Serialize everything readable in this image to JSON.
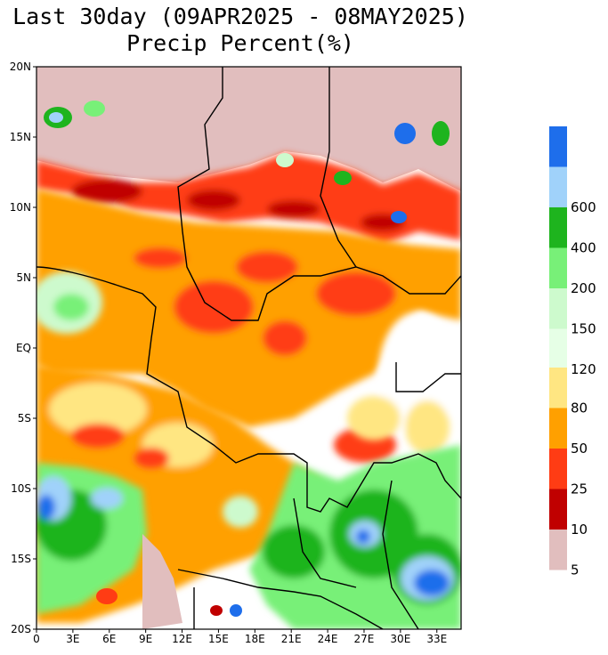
{
  "title": {
    "line1": "Last 30day (09APR2025 - 08MAY2025)",
    "line2": "Precip Percent(%)"
  },
  "axes": {
    "lat_labels": [
      "20N",
      "15N",
      "10N",
      "5N",
      "EQ",
      "5S",
      "10S",
      "15S",
      "20S"
    ],
    "lon_labels": [
      "0",
      "3E",
      "6E",
      "9E",
      "12E",
      "15E",
      "18E",
      "21E",
      "24E",
      "27E",
      "30E",
      "33E"
    ],
    "lat_range": [
      -20,
      20
    ],
    "lon_range": [
      0,
      35
    ]
  },
  "legend": {
    "upper": [
      {
        "color": "#e6ffe6",
        "label": "120"
      },
      {
        "color": "#cdfacd",
        "label": "150"
      },
      {
        "color": "#78f078",
        "label": "200"
      },
      {
        "color": "#1eb41e",
        "label": "400"
      },
      {
        "color": "#a0d2fa",
        "label": "600"
      },
      {
        "color": "#1e6eeb",
        "label": ""
      }
    ],
    "lower": [
      {
        "color": "#e1bebe",
        "label": "5"
      },
      {
        "color": "#c00000",
        "label": "10"
      },
      {
        "color": "#ff3c14",
        "label": "25"
      },
      {
        "color": "#ffa000",
        "label": "50"
      },
      {
        "color": "#ffe682",
        "label": "80"
      }
    ]
  },
  "colors": {
    "ocean_land_base": "#ffffff",
    "dry_north": "#e1bebe",
    "deficit_dark": "#c00000",
    "deficit_red": "#ff3c14",
    "deficit_orange": "#ffa000",
    "deficit_yellow": "#ffe682",
    "surplus_light": "#cdfacd",
    "surplus_mid": "#78f078",
    "surplus_green": "#1eb41e",
    "surplus_lightblue": "#a0d2fa",
    "surplus_blue": "#1e6eeb"
  }
}
